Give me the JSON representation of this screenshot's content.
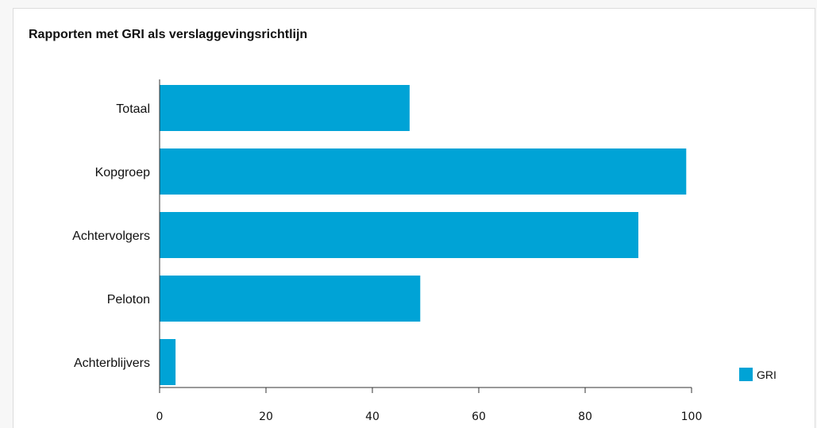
{
  "chart_data": {
    "type": "bar",
    "orientation": "horizontal",
    "title": "Rapporten met GRI als verslaggevingsrichtlijn",
    "xlabel": "",
    "ylabel": "",
    "categories": [
      "Totaal",
      "Kopgroep",
      "Achtervolgers",
      "Peloton",
      "Achterblijvers"
    ],
    "series": [
      {
        "name": "GRI",
        "values": [
          47,
          99,
          90,
          49,
          3
        ]
      }
    ],
    "xlim": [
      0,
      100
    ],
    "xticks": [
      "0",
      "20",
      "40",
      "60",
      "80",
      "100"
    ],
    "grid": false,
    "legend_position": "bottom-right",
    "colors": {
      "bar": "#00a3d6",
      "axis": "#333333"
    }
  }
}
